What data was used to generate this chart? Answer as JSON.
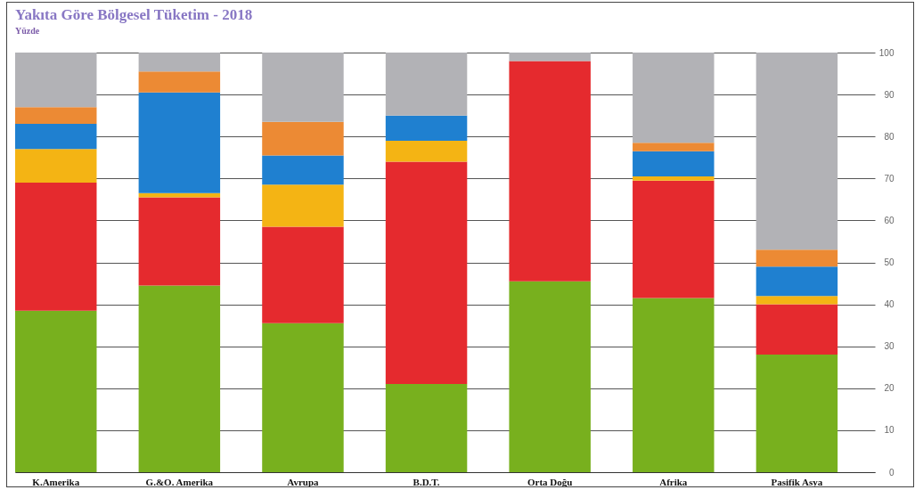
{
  "chart_data": {
    "type": "bar",
    "title": "Yakıta Göre Bölgesel Tüketim - 2018",
    "subtitle": "Yüzde",
    "categories": [
      "K.Amerika",
      "G.&O. Amerika",
      "Avrupa",
      "B.D.T.",
      "Orta Doğu",
      "Afrika",
      "Pasifik Asya"
    ],
    "series": [
      {
        "color": "#78b01e",
        "values": [
          38.5,
          44.5,
          35.5,
          21,
          45.5,
          41.5,
          28
        ]
      },
      {
        "color": "#e52a2e",
        "values": [
          30.5,
          21,
          23,
          53,
          52.5,
          28,
          12
        ]
      },
      {
        "color": "#f4b414",
        "values": [
          8,
          1,
          10,
          5,
          null,
          1,
          2
        ]
      },
      {
        "color": "#1f80d0",
        "values": [
          6,
          24,
          7,
          6,
          null,
          6,
          7
        ]
      },
      {
        "color": "#ec8a34",
        "values": [
          4,
          5,
          8,
          null,
          null,
          2,
          4
        ]
      },
      {
        "color": "#b2b2b6",
        "values": [
          13,
          4.5,
          16.5,
          15,
          2,
          21.5,
          47
        ]
      }
    ],
    "stacked": true,
    "ylim": [
      0,
      100
    ],
    "yticks": [
      0,
      10,
      20,
      30,
      40,
      50,
      60,
      70,
      80,
      90,
      100
    ],
    "grid": "y"
  }
}
